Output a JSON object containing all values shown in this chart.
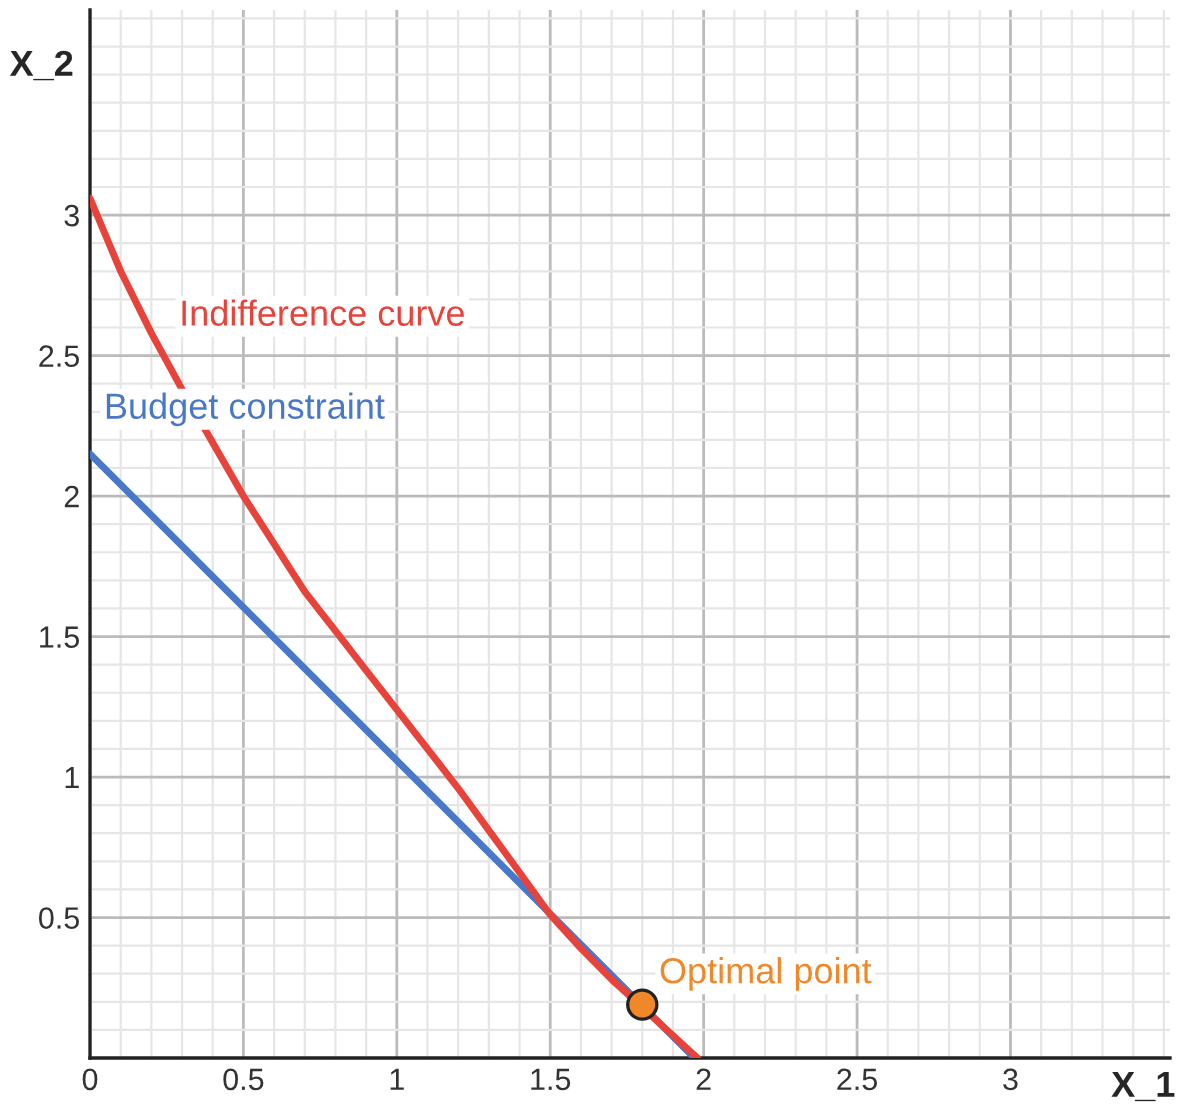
{
  "chart_data": {
    "type": "line",
    "xlabel": "X_1",
    "ylabel": "X_2",
    "xlim": [
      0,
      3.52
    ],
    "ylim": [
      0,
      3.73
    ],
    "xticks": [
      0,
      0.5,
      1,
      1.5,
      2,
      2.5,
      3
    ],
    "yticks": [
      0.5,
      1,
      1.5,
      2,
      2.5,
      3
    ],
    "grid": true,
    "marker": "none",
    "series": [
      {
        "name": "Indifference curve",
        "color": "#e8433a",
        "x": [
          0,
          0.05,
          0.1,
          0.2,
          0.3,
          0.4,
          0.5,
          0.6,
          0.7,
          0.8,
          0.9,
          1,
          1.1,
          1.2,
          1.3,
          1.4,
          1.5,
          1.6,
          1.7,
          1.8,
          1.9,
          1.98
        ],
        "values": [
          3.06,
          2.93,
          2.8,
          2.58,
          2.38,
          2.19,
          2.0,
          1.83,
          1.66,
          1.52,
          1.38,
          1.24,
          1.1,
          0.96,
          0.81,
          0.66,
          0.51,
          0.39,
          0.28,
          0.18,
          0.08,
          0
        ]
      },
      {
        "name": "Budget constraint",
        "color": "#4a78c8",
        "x": [
          0,
          1.97
        ],
        "values": [
          2.15,
          0
        ]
      },
      {
        "name": "Optimal point",
        "type": "scatter",
        "marker": "circle",
        "color": "#f0882a",
        "x": [
          1.8
        ],
        "values": [
          0.19
        ]
      }
    ]
  }
}
